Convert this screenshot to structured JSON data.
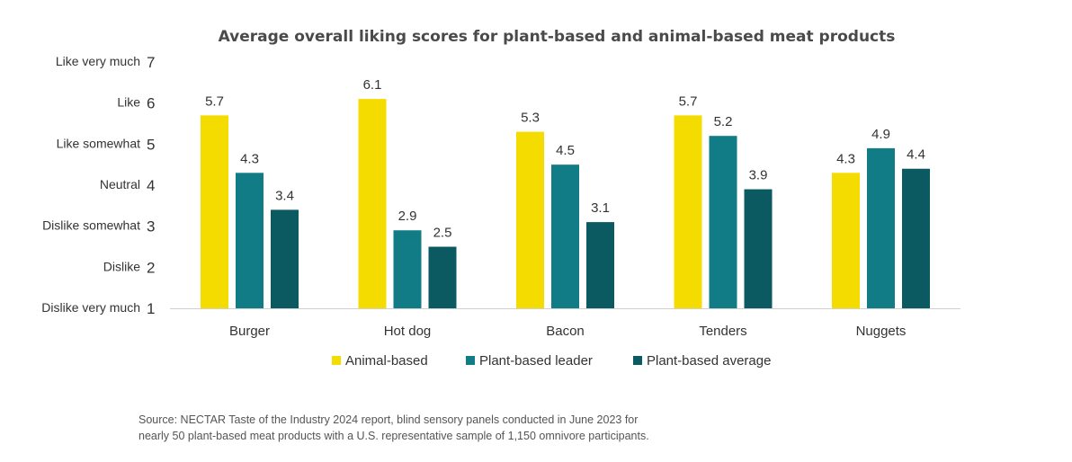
{
  "chart_data": {
    "type": "bar",
    "title": "Average overall liking scores for plant-based and animal-based meat products",
    "categories": [
      "Burger",
      "Hot dog",
      "Bacon",
      "Tenders",
      "Nuggets"
    ],
    "series": [
      {
        "name": "Animal-based",
        "color": "#f5dc00",
        "values": [
          5.7,
          6.1,
          5.3,
          5.7,
          4.3
        ]
      },
      {
        "name": "Plant-based leader",
        "color": "#127c86",
        "values": [
          4.3,
          2.9,
          4.5,
          5.2,
          4.9
        ]
      },
      {
        "name": "Plant-based average",
        "color": "#0b5a61",
        "values": [
          3.4,
          2.5,
          3.1,
          3.9,
          4.4
        ]
      }
    ],
    "ylim": [
      1,
      7
    ],
    "yticks": [
      {
        "value": 1,
        "text": "Dislike very much",
        "num": "1"
      },
      {
        "value": 2,
        "text": "Dislike",
        "num": "2"
      },
      {
        "value": 3,
        "text": "Dislike somewhat",
        "num": "3"
      },
      {
        "value": 4,
        "text": "Neutral",
        "num": "4"
      },
      {
        "value": 5,
        "text": "Like somewhat",
        "num": "5"
      },
      {
        "value": 6,
        "text": "Like",
        "num": "6"
      },
      {
        "value": 7,
        "text": "Like very much",
        "num": "7"
      }
    ],
    "grid": false,
    "legend_position": "bottom",
    "source": [
      "Source: NECTAR Taste of the Industry 2024 report, blind sensory panels conducted in June 2023 for",
      "nearly 50 plant-based meat products with a U.S. representative sample of 1,150 omnivore participants."
    ]
  }
}
